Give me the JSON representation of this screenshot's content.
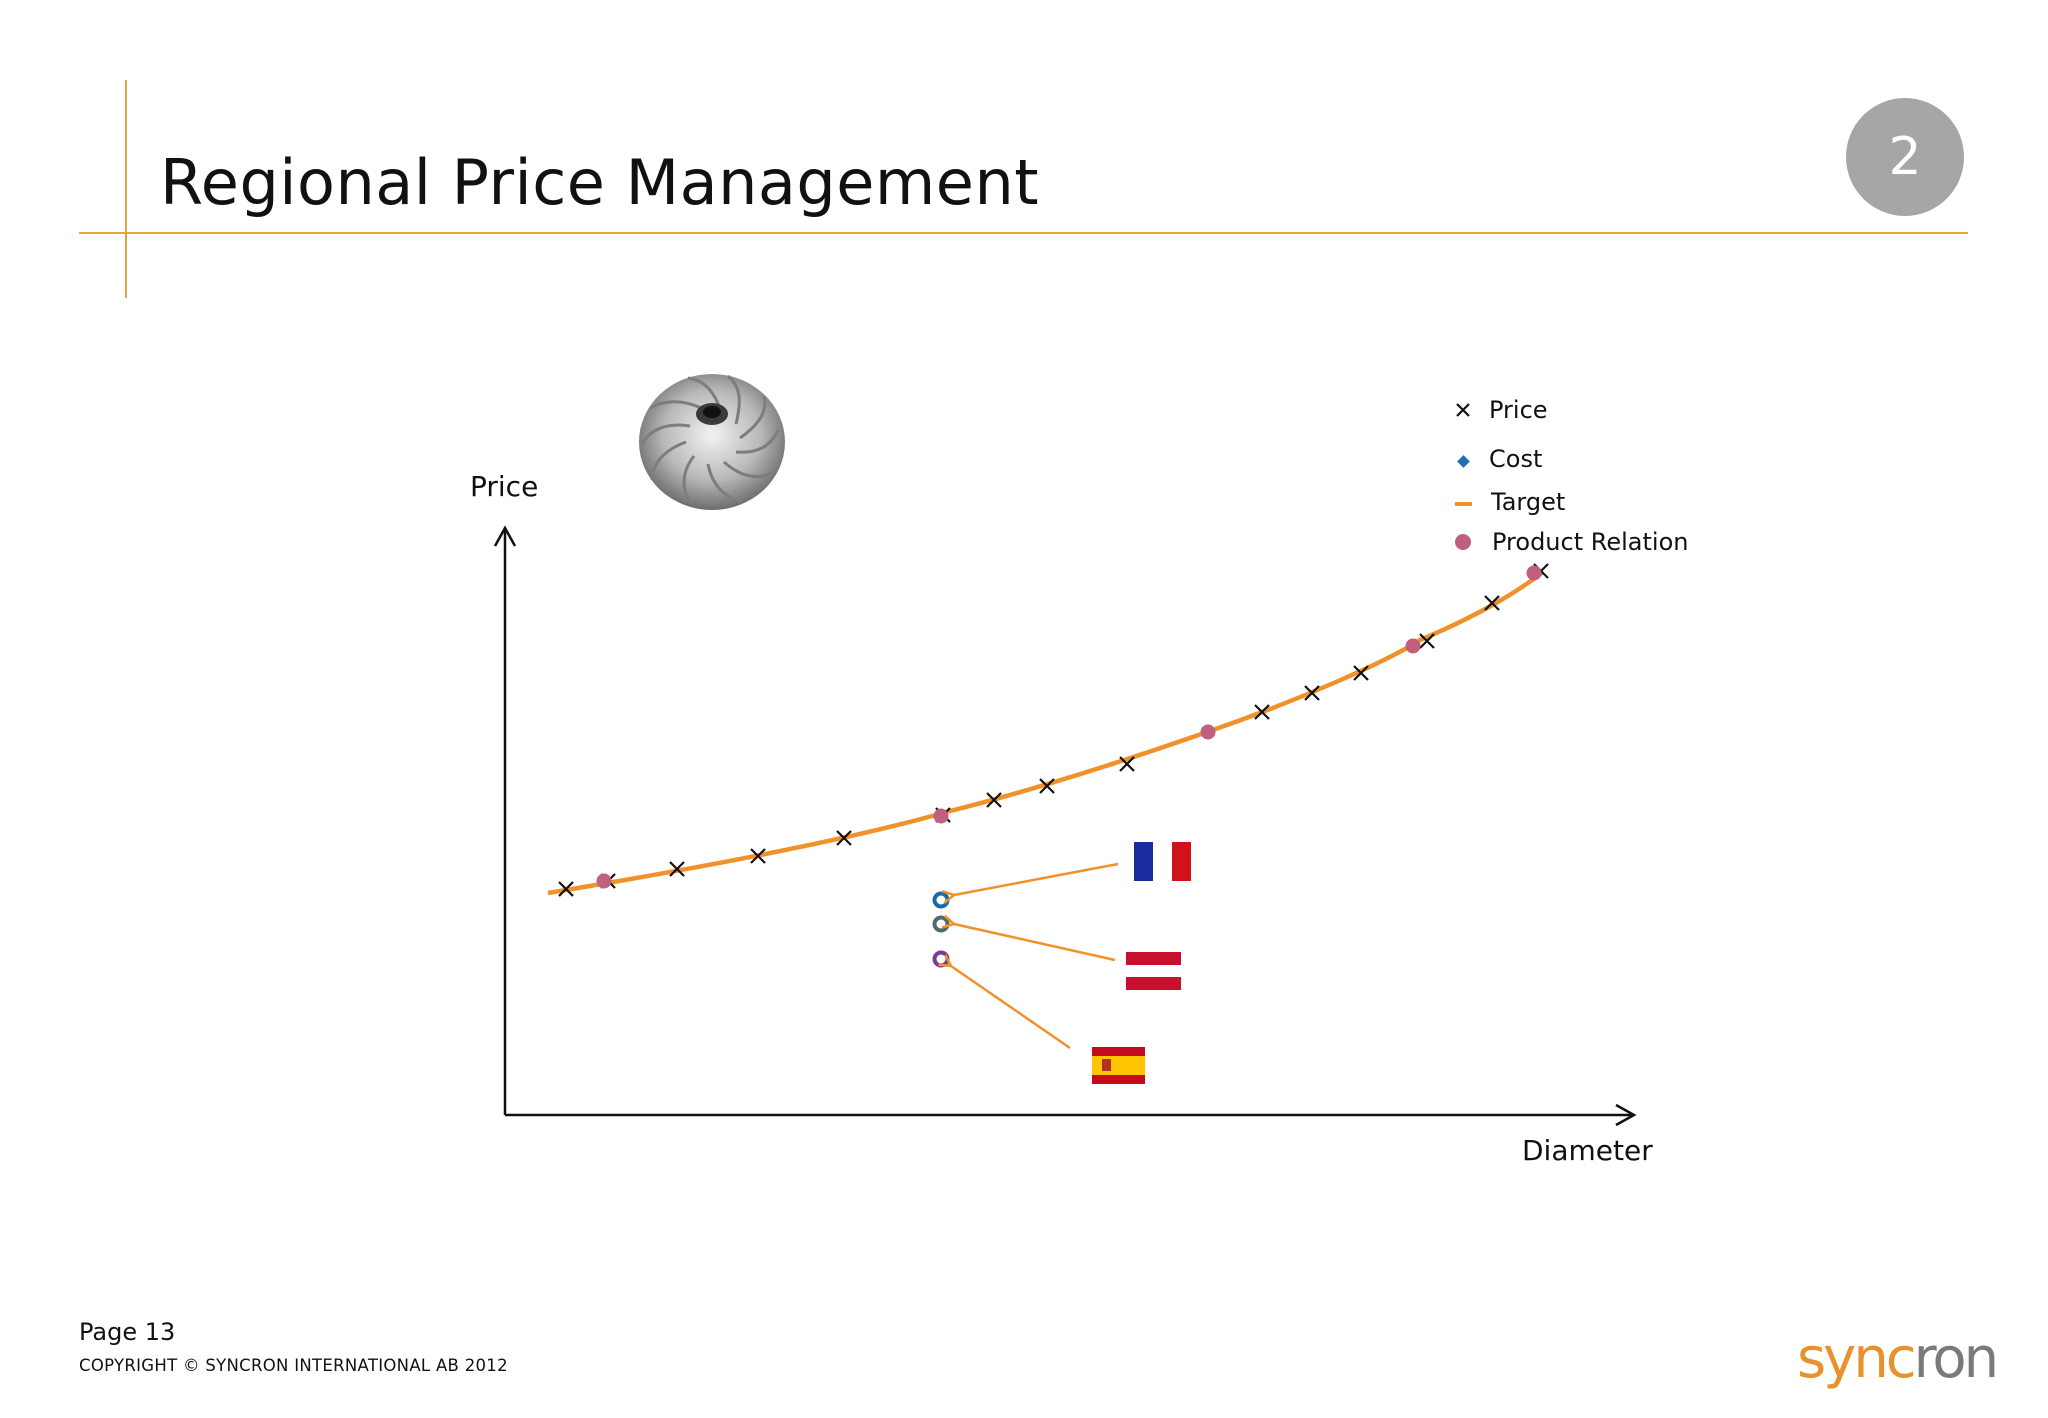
{
  "slide": {
    "title": "Regional Price Management",
    "section_number": "2",
    "page_label": "Page 13",
    "copyright": "COPYRIGHT © SYNCRON INTERNATIONAL AB 2012",
    "logo_part1": "sync",
    "logo_part2": "ron",
    "accent_color": "#e8922e"
  },
  "diagram": {
    "y_axis_label": "Price",
    "x_axis_label": "Diameter",
    "legend": [
      {
        "label": "Price",
        "marker": "x-icon",
        "color": "#111111"
      },
      {
        "label": "Cost",
        "marker": "diamond-icon",
        "color": "#1f6fb5"
      },
      {
        "label": "Target",
        "marker": "dash-icon",
        "color": "#f0912a"
      },
      {
        "label": "Product Relation",
        "marker": "dot-icon",
        "color": "#c0607e"
      }
    ],
    "regional_markers": [
      {
        "flag": "france-flag-icon",
        "ring_color": "#1a6aa8"
      },
      {
        "flag": "austria-flag-icon",
        "ring_color": "#4f6e6a"
      },
      {
        "flag": "spain-flag-icon",
        "ring_color": "#7a3c96"
      }
    ],
    "images": [
      "turbine-impeller-icon"
    ]
  }
}
